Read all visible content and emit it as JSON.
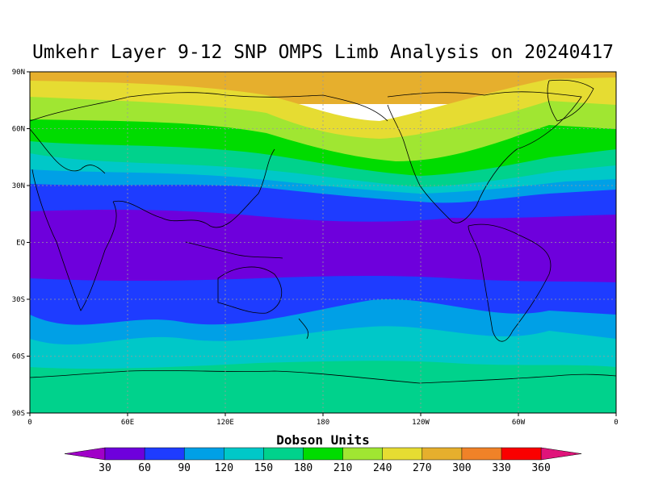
{
  "title": "Umkehr Layer 9-12 SNP OMPS Limb Analysis on 20240417",
  "lat_labels": [
    "90N",
    "60N",
    "30N",
    "EQ",
    "30S",
    "60S",
    "90S"
  ],
  "lon_labels": [
    "0",
    "60E",
    "120E",
    "180",
    "120W",
    "60W",
    "0"
  ],
  "legend": {
    "title": "Dobson Units",
    "ticks": [
      "30",
      "60",
      "90",
      "120",
      "150",
      "180",
      "210",
      "240",
      "270",
      "300",
      "330",
      "360"
    ],
    "under_color": "#a000c8",
    "over_color": "#e0147a",
    "colors": [
      "#6e00dc",
      "#1e3cff",
      "#00a0e6",
      "#00c8c8",
      "#00d28c",
      "#00dc00",
      "#a0e632",
      "#e6dc32",
      "#e6af2d",
      "#f08228",
      "#fa0000"
    ]
  },
  "chart_data": {
    "type": "heatmap",
    "title": "Umkehr Layer 9-12 SNP OMPS Limb Analysis on 20240417",
    "xlabel": "",
    "ylabel": "",
    "colorbar_label": "Dobson Units",
    "x_range": [
      0,
      360
    ],
    "y_range": [
      -90,
      90
    ],
    "grid": true,
    "bands_by_latitude": [
      {
        "lat_range": [
          75,
          90
        ],
        "value_range": [
          270,
          300
        ]
      },
      {
        "lat_range": [
          65,
          75
        ],
        "value_range": [
          240,
          270
        ]
      },
      {
        "lat_range": [
          55,
          65
        ],
        "value_range": [
          210,
          240
        ]
      },
      {
        "lat_range": [
          45,
          55
        ],
        "value_range": [
          180,
          210
        ]
      },
      {
        "lat_range": [
          38,
          45
        ],
        "value_range": [
          150,
          180
        ]
      },
      {
        "lat_range": [
          30,
          38
        ],
        "value_range": [
          120,
          150
        ]
      },
      {
        "lat_range": [
          20,
          30
        ],
        "value_range": [
          90,
          120
        ]
      },
      {
        "lat_range": [
          10,
          20
        ],
        "value_range": [
          60,
          90
        ]
      },
      {
        "lat_range": [
          -20,
          10
        ],
        "value_range": [
          30,
          60
        ]
      },
      {
        "lat_range": [
          -30,
          -20
        ],
        "value_range": [
          60,
          90
        ]
      },
      {
        "lat_range": [
          -42,
          -30
        ],
        "value_range": [
          90,
          120
        ]
      },
      {
        "lat_range": [
          -52,
          -42
        ],
        "value_range": [
          120,
          150
        ]
      },
      {
        "lat_range": [
          -62,
          -52
        ],
        "value_range": [
          150,
          180
        ]
      },
      {
        "lat_range": [
          -90,
          -62
        ],
        "value_range": [
          180,
          210
        ]
      }
    ]
  }
}
